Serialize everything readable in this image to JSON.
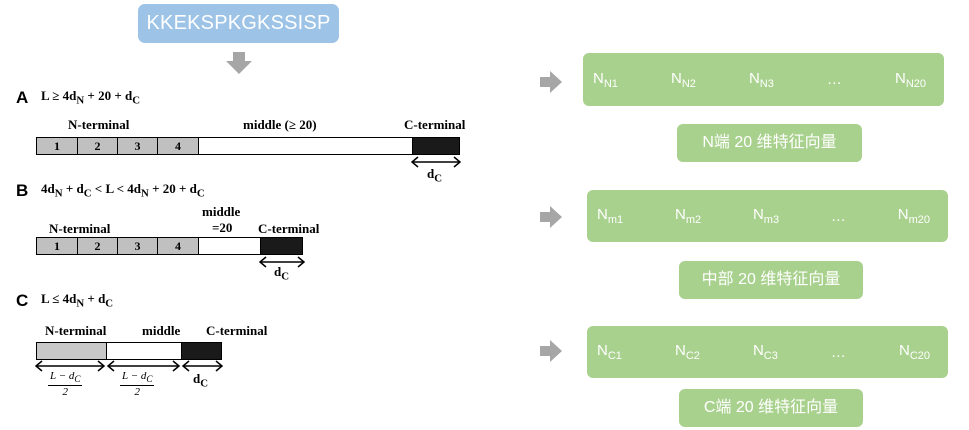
{
  "sequence": "KKEKSPKGKSSISP",
  "sections": [
    {
      "letter": "A",
      "segments": [
        "1",
        "2",
        "3",
        "4"
      ],
      "labels": {
        "n": "N-terminal",
        "m": "middle (≥ 20)",
        "c": "C-terminal"
      }
    },
    {
      "letter": "B",
      "segments": [
        "1",
        "2",
        "3",
        "4"
      ],
      "labels": {
        "n": "N-terminal",
        "m1": "middle",
        "m2": "=20",
        "c": "C-terminal"
      }
    },
    {
      "letter": "C",
      "labels": {
        "n": "N-terminal",
        "m": "middle",
        "c": "C-terminal"
      },
      "frac_num": "L − d",
      "frac_den": "2"
    }
  ],
  "features": [
    {
      "prefix": "N",
      "subs": [
        "N1",
        "N2",
        "N3",
        "N20"
      ],
      "ellipsis": "…",
      "caption": "N端 20 维特征向量"
    },
    {
      "prefix": "N",
      "subs": [
        "m1",
        "m2",
        "m3",
        "m20"
      ],
      "ellipsis": "…",
      "caption": "中部 20 维特征向量"
    },
    {
      "prefix": "N",
      "subs": [
        "C1",
        "C2",
        "C3",
        "C20"
      ],
      "ellipsis": "…",
      "caption": "C端 20 维特征向量"
    }
  ],
  "colors": {
    "blue_box": "#9dc3e6",
    "green_box": "#a9d18e",
    "arrow": "#a6a6a6"
  }
}
